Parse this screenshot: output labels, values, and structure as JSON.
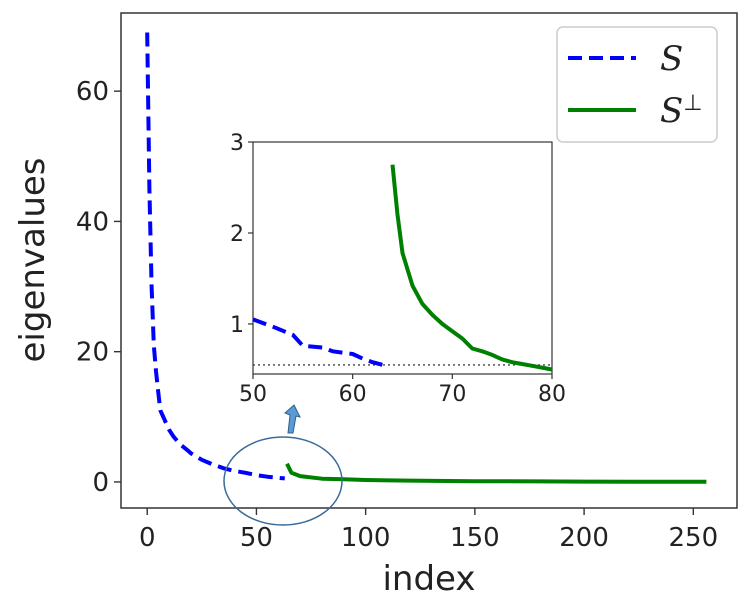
{
  "chart_data": [
    {
      "type": "line",
      "xlabel": "index",
      "ylabel": "eigenvalues",
      "xlim": [
        -12,
        270
      ],
      "ylim": [
        -4,
        72
      ],
      "xticks": [
        0,
        50,
        100,
        150,
        200,
        250
      ],
      "yticks": [
        0,
        20,
        40,
        60
      ],
      "grid": false,
      "legend_position": "top-right",
      "series": [
        {
          "name": "S",
          "color": "#0000ff",
          "style": "dashed",
          "x": [
            0,
            1,
            2,
            3,
            4,
            5,
            6,
            8,
            10,
            12,
            15,
            18,
            20,
            25,
            30,
            35,
            40,
            45,
            50,
            55,
            60,
            63
          ],
          "y": [
            69,
            45,
            30,
            21,
            17,
            14,
            11,
            9.5,
            8,
            7,
            5.8,
            5,
            4.4,
            3.4,
            2.7,
            2.1,
            1.7,
            1.4,
            1.05,
            0.8,
            0.62,
            0.55
          ]
        },
        {
          "name": "S⊥",
          "color": "#008000",
          "style": "solid",
          "x": [
            64,
            66,
            70,
            80,
            90,
            100,
            120,
            150,
            180,
            200,
            230,
            256
          ],
          "y": [
            2.8,
            1.4,
            0.9,
            0.5,
            0.4,
            0.3,
            0.2,
            0.12,
            0.08,
            0.05,
            0.03,
            0.02
          ]
        }
      ]
    },
    {
      "type": "line",
      "xlim": [
        50,
        80
      ],
      "ylim": [
        0.45,
        3
      ],
      "xticks": [
        50,
        60,
        70,
        80
      ],
      "yticks": [
        1,
        2,
        3
      ],
      "reference_line_y": 0.55,
      "series": [
        {
          "name": "S",
          "color": "#0000ff",
          "style": "dashed",
          "x": [
            50,
            52,
            54,
            55,
            57,
            58,
            60,
            61,
            62,
            63
          ],
          "y": [
            1.05,
            0.97,
            0.88,
            0.76,
            0.74,
            0.7,
            0.67,
            0.62,
            0.58,
            0.55
          ]
        },
        {
          "name": "S⊥",
          "color": "#008000",
          "style": "solid",
          "x": [
            64,
            64.5,
            65,
            66,
            67,
            68,
            69,
            70,
            71,
            72,
            73,
            74,
            75,
            76,
            77,
            78,
            79,
            80
          ],
          "y": [
            2.75,
            2.2,
            1.78,
            1.42,
            1.22,
            1.1,
            1.0,
            0.92,
            0.84,
            0.73,
            0.7,
            0.66,
            0.61,
            0.58,
            0.56,
            0.54,
            0.52,
            0.5
          ]
        }
      ]
    }
  ],
  "legend": {
    "s_label": "S",
    "sperp_label": "S",
    "sperp_sup": "⊥"
  }
}
